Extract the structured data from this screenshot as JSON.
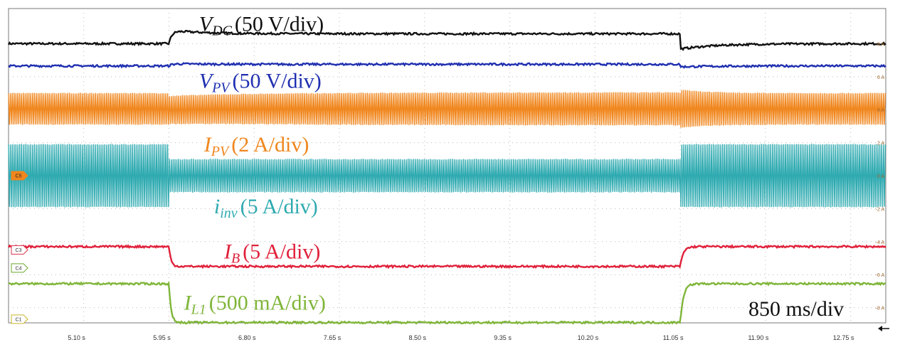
{
  "chart_data": {
    "type": "line",
    "title": "",
    "x_unit": "s",
    "x_range": [
      4.35,
      13.1
    ],
    "x_ticks": [
      "5.10 s",
      "5.95 s",
      "6.80 s",
      "7.65 s",
      "8.50 s",
      "9.35 s",
      "10.20 s",
      "11.05 s",
      "11.90 s",
      "12.75 s"
    ],
    "x_tick_values": [
      5.1,
      5.95,
      6.8,
      7.65,
      8.5,
      9.35,
      10.2,
      11.05,
      11.9,
      12.75
    ],
    "right_axis_ticks": [
      "8 A",
      "6 A",
      "4 A",
      "2 A",
      "0 A",
      "-2 A",
      "-4 A",
      "-6 A",
      "-8 A"
    ],
    "right_axis_values": [
      8,
      6,
      4,
      2,
      0,
      -2,
      -4,
      -6,
      -8
    ],
    "timebase": "850 ms/div",
    "grid": true,
    "events": [
      5.95,
      11.05
    ],
    "channel_markers": [
      {
        "label": "C5",
        "color": "#f0861d",
        "level": 0
      },
      {
        "label": "C3",
        "color": "#d9304a",
        "level": -4.5
      },
      {
        "label": "C4",
        "color": "#6aa72a",
        "level": -5.6
      },
      {
        "label": "C1",
        "color": "#c9b52a",
        "level": -8.7
      }
    ],
    "series": [
      {
        "name": "V",
        "sub": "DC",
        "scale": "(50 V/div)",
        "color": "#111111",
        "kind": "dc",
        "level_before": 8.0,
        "level_during": 8.6,
        "level_after": 8.0,
        "label_level": 9.2,
        "label_x": 6.25
      },
      {
        "name": "V",
        "sub": "PV",
        "scale": "(50 V/div)",
        "color": "#1f2fb0",
        "kind": "dc",
        "level_before": 6.65,
        "level_during": 6.75,
        "level_after": 6.65,
        "label_level": 5.75,
        "label_x": 6.25
      },
      {
        "name": "I",
        "sub": "PV",
        "scale": "(2 A/div)",
        "color": "#f0861d",
        "kind": "ripple",
        "center": 4.05,
        "amp_before": 0.95,
        "amp_during": 0.85,
        "amp_after": 0.95,
        "label_level": 1.9,
        "label_x": 6.3
      },
      {
        "name": "i",
        "sub": "inv",
        "scale": "(5 A/div)",
        "color": "#2eaab0",
        "kind": "ripple",
        "center": 0.0,
        "amp_before": 1.9,
        "amp_during": 1.0,
        "amp_after": 1.9,
        "label_level": -1.85,
        "label_x": 6.4
      },
      {
        "name": "I",
        "sub": "B",
        "scale": "(5 A/div)",
        "color": "#e0203a",
        "kind": "dc",
        "level_before": -4.3,
        "level_during": -5.5,
        "level_after": -4.3,
        "label_level": -4.6,
        "label_x": 6.5
      },
      {
        "name": "I",
        "sub": "L1",
        "scale": "(500 mA/div)",
        "color": "#7fb539",
        "kind": "dc",
        "level_before": -6.55,
        "level_during": -8.9,
        "level_after": -6.55,
        "label_level": -7.7,
        "label_x": 6.1
      }
    ]
  }
}
